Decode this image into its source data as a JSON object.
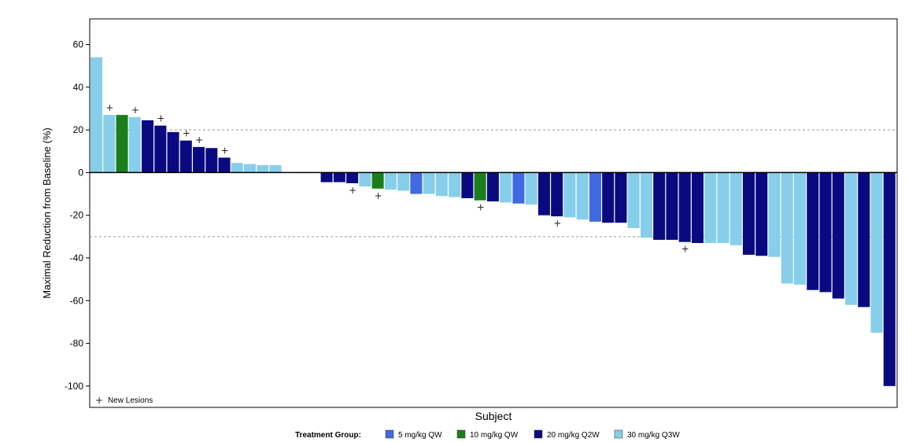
{
  "chart_data": {
    "type": "bar",
    "title": "",
    "xlabel": "Subject",
    "ylabel": "Maximal Reduction from Baseline (%)",
    "ylim": [
      -110,
      72
    ],
    "yticks": [
      60,
      40,
      20,
      0,
      -20,
      -40,
      -60,
      -80,
      -100
    ],
    "reference_lines": [
      20,
      -30
    ],
    "grid": false,
    "legend_title": "Treatment Group:",
    "legend_position": "bottom",
    "groups": [
      {
        "name": "5 mg/kg QW",
        "color": "#4169e1"
      },
      {
        "name": "10 mg/kg QW",
        "color": "#1a7f1a"
      },
      {
        "name": "20 mg/kg Q2W",
        "color": "#0a0a80"
      },
      {
        "name": "30 mg/kg Q3W",
        "color": "#87ceeb"
      }
    ],
    "marker_legend": {
      "symbol": "+",
      "label": "New Lesions"
    },
    "bars": [
      {
        "value": 54,
        "group": 3,
        "new_lesion": false
      },
      {
        "value": 27,
        "group": 3,
        "new_lesion": true
      },
      {
        "value": 27,
        "group": 1,
        "new_lesion": false
      },
      {
        "value": 26,
        "group": 3,
        "new_lesion": true
      },
      {
        "value": 24.5,
        "group": 2,
        "new_lesion": false
      },
      {
        "value": 22,
        "group": 2,
        "new_lesion": true
      },
      {
        "value": 19,
        "group": 2,
        "new_lesion": false
      },
      {
        "value": 15,
        "group": 2,
        "new_lesion": true
      },
      {
        "value": 12,
        "group": 2,
        "new_lesion": true
      },
      {
        "value": 11.5,
        "group": 2,
        "new_lesion": false
      },
      {
        "value": 7,
        "group": 2,
        "new_lesion": true
      },
      {
        "value": 4.5,
        "group": 3,
        "new_lesion": false
      },
      {
        "value": 4,
        "group": 3,
        "new_lesion": false
      },
      {
        "value": 3.5,
        "group": 3,
        "new_lesion": false
      },
      {
        "value": 3.5,
        "group": 3,
        "new_lesion": false
      },
      {
        "value": 0,
        "group": 3,
        "new_lesion": false
      },
      {
        "value": 0,
        "group": 3,
        "new_lesion": false
      },
      {
        "value": 0,
        "group": 3,
        "new_lesion": false
      },
      {
        "value": -4.5,
        "group": 2,
        "new_lesion": false
      },
      {
        "value": -4.5,
        "group": 2,
        "new_lesion": false
      },
      {
        "value": -5,
        "group": 2,
        "new_lesion": true
      },
      {
        "value": -6.5,
        "group": 3,
        "new_lesion": false
      },
      {
        "value": -7.5,
        "group": 1,
        "new_lesion": true
      },
      {
        "value": -8,
        "group": 3,
        "new_lesion": false
      },
      {
        "value": -8.5,
        "group": 3,
        "new_lesion": false
      },
      {
        "value": -10,
        "group": 0,
        "new_lesion": false
      },
      {
        "value": -10,
        "group": 3,
        "new_lesion": false
      },
      {
        "value": -11,
        "group": 3,
        "new_lesion": false
      },
      {
        "value": -11.5,
        "group": 3,
        "new_lesion": false
      },
      {
        "value": -12,
        "group": 2,
        "new_lesion": false
      },
      {
        "value": -13,
        "group": 1,
        "new_lesion": true
      },
      {
        "value": -13.5,
        "group": 2,
        "new_lesion": false
      },
      {
        "value": -14,
        "group": 3,
        "new_lesion": false
      },
      {
        "value": -14.5,
        "group": 0,
        "new_lesion": false
      },
      {
        "value": -15,
        "group": 3,
        "new_lesion": false
      },
      {
        "value": -20,
        "group": 2,
        "new_lesion": false
      },
      {
        "value": -20.5,
        "group": 2,
        "new_lesion": true
      },
      {
        "value": -21,
        "group": 3,
        "new_lesion": false
      },
      {
        "value": -22,
        "group": 3,
        "new_lesion": false
      },
      {
        "value": -23,
        "group": 0,
        "new_lesion": false
      },
      {
        "value": -23.5,
        "group": 2,
        "new_lesion": false
      },
      {
        "value": -23.5,
        "group": 2,
        "new_lesion": false
      },
      {
        "value": -26,
        "group": 3,
        "new_lesion": false
      },
      {
        "value": -30.5,
        "group": 3,
        "new_lesion": false
      },
      {
        "value": -31.5,
        "group": 2,
        "new_lesion": false
      },
      {
        "value": -31.5,
        "group": 2,
        "new_lesion": false
      },
      {
        "value": -32.5,
        "group": 2,
        "new_lesion": true
      },
      {
        "value": -33,
        "group": 2,
        "new_lesion": false
      },
      {
        "value": -33,
        "group": 3,
        "new_lesion": false
      },
      {
        "value": -33,
        "group": 3,
        "new_lesion": false
      },
      {
        "value": -34,
        "group": 3,
        "new_lesion": false
      },
      {
        "value": -38.5,
        "group": 2,
        "new_lesion": false
      },
      {
        "value": -39,
        "group": 2,
        "new_lesion": false
      },
      {
        "value": -39.5,
        "group": 3,
        "new_lesion": false
      },
      {
        "value": -52,
        "group": 3,
        "new_lesion": false
      },
      {
        "value": -52.5,
        "group": 3,
        "new_lesion": false
      },
      {
        "value": -55,
        "group": 2,
        "new_lesion": false
      },
      {
        "value": -56,
        "group": 2,
        "new_lesion": false
      },
      {
        "value": -59,
        "group": 2,
        "new_lesion": false
      },
      {
        "value": -62,
        "group": 3,
        "new_lesion": false
      },
      {
        "value": -63,
        "group": 2,
        "new_lesion": false
      },
      {
        "value": -75,
        "group": 3,
        "new_lesion": false
      },
      {
        "value": -100,
        "group": 2,
        "new_lesion": false
      }
    ]
  }
}
